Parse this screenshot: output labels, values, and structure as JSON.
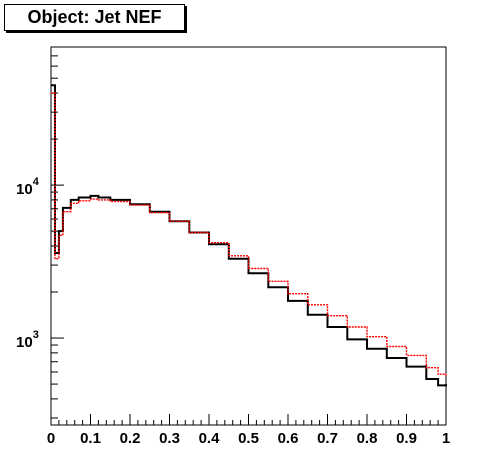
{
  "chart_data": {
    "type": "line",
    "title": "Object: Jet NEF",
    "xlabel": "",
    "ylabel": "",
    "xlim": [
      0,
      1
    ],
    "ylim": [
      270,
      80000
    ],
    "y_scale": "log",
    "grid": false,
    "legend": "none",
    "x_ticks": [
      "0",
      "0.1",
      "0.2",
      "0.3",
      "0.4",
      "0.5",
      "0.6",
      "0.7",
      "0.8",
      "0.9",
      "1"
    ],
    "y_ticks": [
      {
        "value": 1000,
        "base": "10",
        "exp": "3"
      },
      {
        "value": 10000,
        "base": "10",
        "exp": "4"
      }
    ],
    "x": [
      0.0,
      0.01,
      0.02,
      0.03,
      0.05,
      0.07,
      0.1,
      0.12,
      0.15,
      0.2,
      0.25,
      0.3,
      0.35,
      0.4,
      0.45,
      0.5,
      0.55,
      0.6,
      0.65,
      0.7,
      0.75,
      0.8,
      0.85,
      0.9,
      0.95,
      0.98,
      1.0
    ],
    "series": [
      {
        "color": "#000000",
        "values": [
          45000,
          3600,
          5000,
          7100,
          8000,
          8300,
          8500,
          8300,
          8000,
          7500,
          6700,
          5800,
          4900,
          4100,
          3300,
          2650,
          2150,
          1750,
          1420,
          1180,
          980,
          850,
          740,
          650,
          540,
          490,
          500
        ]
      },
      {
        "color": "#ff0000",
        "values": [
          40000,
          3300,
          4700,
          6700,
          7600,
          7900,
          8100,
          8000,
          7800,
          7400,
          6600,
          5800,
          4900,
          4200,
          3450,
          2850,
          2350,
          1950,
          1650,
          1400,
          1180,
          1020,
          880,
          770,
          640,
          580,
          560
        ]
      }
    ]
  }
}
